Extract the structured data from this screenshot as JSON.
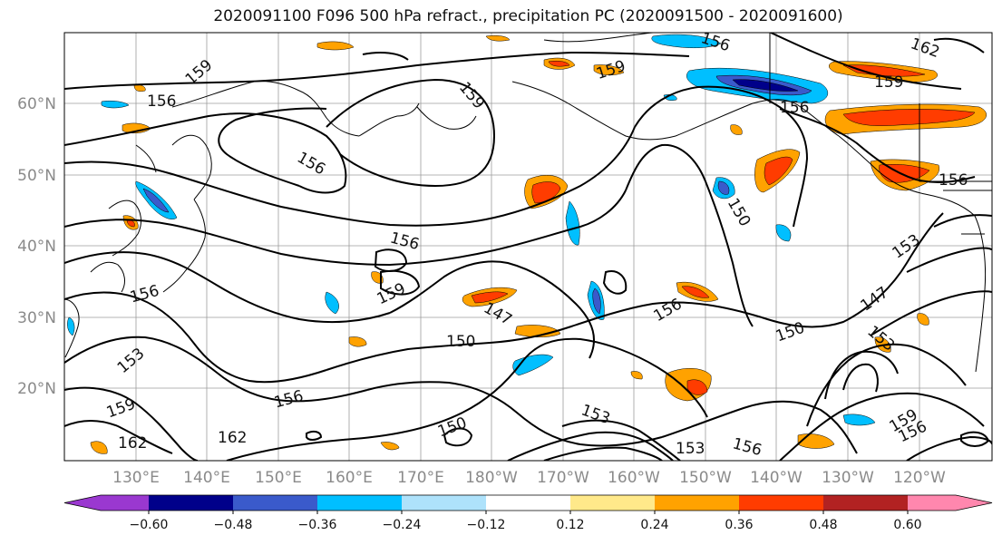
{
  "title": "2020091100 F096 500 hPa refract., precipitation PC (2020091500 - 2020091600)",
  "map": {
    "lat_ticks": [
      "20°N",
      "30°N",
      "40°N",
      "50°N",
      "60°N"
    ],
    "lon_ticks": [
      "130°E",
      "140°E",
      "150°E",
      "160°E",
      "170°E",
      "180°W",
      "170°W",
      "160°W",
      "150°W",
      "140°W",
      "130°W",
      "120°W"
    ],
    "contour_labels": [
      "159",
      "156",
      "156",
      "159",
      "156",
      "159",
      "162",
      "159",
      "156",
      "156",
      "156",
      "159",
      "147",
      "150",
      "156",
      "153",
      "156",
      "150",
      "153",
      "150",
      "159",
      "147",
      "153",
      "156",
      "150",
      "159",
      "153",
      "156",
      "162",
      "162",
      "153",
      "156"
    ]
  },
  "colorbar": {
    "tick_labels": [
      "−0.60",
      "−0.48",
      "−0.36",
      "−0.24",
      "−0.12",
      "0.12",
      "0.24",
      "0.36",
      "0.48",
      "0.60"
    ],
    "colors": [
      "#9a38d0",
      "#00008a",
      "#3a5acb",
      "#00bfff",
      "#aee2fb",
      "#ffffff",
      "#ffe98a",
      "#ffa200",
      "#ff3c00",
      "#b22222",
      "#ff87ae"
    ]
  }
}
